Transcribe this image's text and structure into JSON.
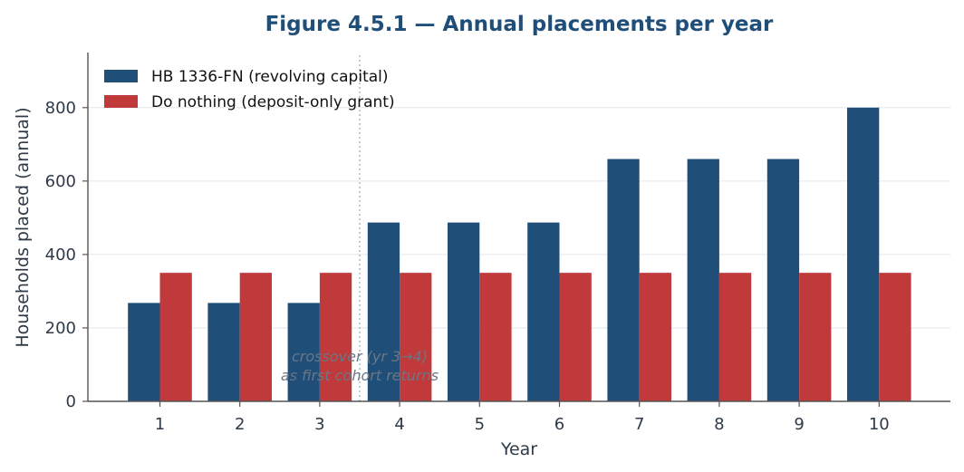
{
  "chart_data": {
    "type": "bar",
    "title": "Figure 4.5.1 — Annual placements per year",
    "xlabel": "Year",
    "ylabel": "Households placed (annual)",
    "categories": [
      "1",
      "2",
      "3",
      "4",
      "5",
      "6",
      "7",
      "8",
      "9",
      "10"
    ],
    "series": [
      {
        "name": "HB 1336-FN (revolving capital)",
        "color": "#1f4e79",
        "values": [
          268,
          268,
          268,
          487,
          487,
          487,
          660,
          660,
          660,
          800
        ]
      },
      {
        "name": "Do nothing (deposit-only grant)",
        "color": "#c0393b",
        "values": [
          350,
          350,
          350,
          350,
          350,
          350,
          350,
          350,
          350,
          350
        ]
      }
    ],
    "ylim": [
      0,
      950
    ],
    "yticks": [
      0,
      200,
      400,
      600,
      800
    ],
    "grid": "horizontal",
    "legend": "top-left",
    "annotation": {
      "lines": [
        "crossover (yr 3→4)",
        "as first cohort returns"
      ],
      "x_between_categories": [
        "3",
        "4"
      ]
    }
  }
}
